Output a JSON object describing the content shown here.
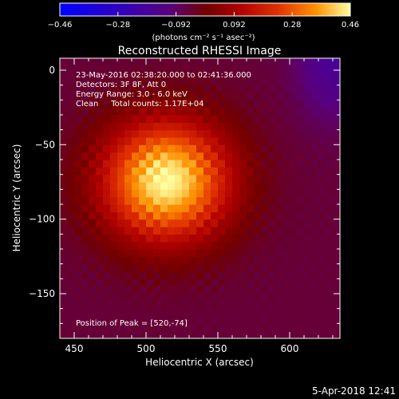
{
  "chart_data": {
    "type": "heatmap",
    "title": "Reconstructed RHESSI Image",
    "xlabel": "Heliocentric X (arcsec)",
    "ylabel": "Heliocentric Y (arcsec)",
    "xlim": [
      440,
      635
    ],
    "ylim": [
      -180,
      8
    ],
    "xticks": [
      450,
      500,
      550,
      600
    ],
    "yticks": [
      0,
      -50,
      -100,
      -150
    ],
    "colorbar": {
      "ticks": [
        "-0.46",
        "-0.28",
        "-0.092",
        "0.092",
        "0.28",
        "0.46"
      ],
      "range": [
        -0.46,
        0.46
      ],
      "unit": "(photons cm⁻² s⁻¹ asec⁻²)"
    },
    "annotations": [
      "23-May-2016 02:38:20.000 to 02:41:36.000",
      "Detectors: 3F 8F, Att 0",
      "Energy Range: 3.0 - 6.0 keV",
      "Clean     Total counts: 1.17E+04"
    ],
    "peak_label": "Position of Peak = [520,-74]",
    "peak": [
      520,
      -74
    ],
    "peak_value": 0.46,
    "background_value": -0.05,
    "source_shape": {
      "center_offset": [
        -6,
        0
      ],
      "sigma_x": 55,
      "sigma_y": 50
    },
    "footer": "5-Apr-2018 12:41"
  }
}
